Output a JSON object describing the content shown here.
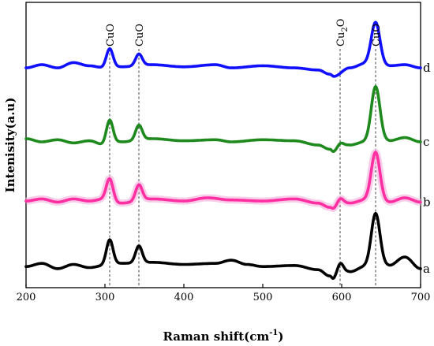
{
  "chart_data": {
    "type": "line",
    "xlabel": "Raman shift(cm",
    "xlabel_sup": "-1",
    "xlabel_close": ")",
    "ylabel": "Intenisity(a.u)",
    "xlim": [
      200,
      700
    ],
    "xticks": [
      "200",
      "300",
      "400",
      "500",
      "600",
      "700"
    ],
    "grid": false,
    "legend": "none",
    "annotations": [
      {
        "x": 306,
        "text": "CuO"
      },
      {
        "x": 343,
        "text": "CuO"
      },
      {
        "x": 598,
        "text": "Cu",
        "sub": "2",
        "tail": "O"
      },
      {
        "x": 643,
        "text": "CuO"
      }
    ],
    "series": [
      {
        "name": "a",
        "color": "#000000",
        "offset": 0,
        "baseline": [
          [
            200,
            0.0
          ],
          [
            220,
            0.3
          ],
          [
            240,
            -0.2
          ],
          [
            260,
            0.2
          ],
          [
            280,
            -0.1
          ],
          [
            300,
            0.1
          ],
          [
            320,
            0.3
          ],
          [
            360,
            0.4
          ],
          [
            400,
            0.2
          ],
          [
            440,
            0.3
          ],
          [
            460,
            0.6
          ],
          [
            480,
            0.2
          ],
          [
            500,
            0.0
          ],
          [
            540,
            0.1
          ],
          [
            570,
            -0.3
          ],
          [
            585,
            -0.9
          ],
          [
            590,
            -1.3
          ],
          [
            610,
            -0.5
          ],
          [
            630,
            0.0
          ],
          [
            660,
            0.1
          ],
          [
            680,
            0.9
          ],
          [
            700,
            -0.2
          ]
        ],
        "peaks": [
          [
            306,
            2.4
          ],
          [
            343,
            1.6
          ],
          [
            598,
            1.3
          ],
          [
            643,
            5.0
          ]
        ]
      },
      {
        "name": "b",
        "color": "#ff2fa2",
        "offset": 6.2,
        "baseline": [
          [
            200,
            0.0
          ],
          [
            220,
            0.2
          ],
          [
            240,
            -0.1
          ],
          [
            260,
            0.2
          ],
          [
            280,
            0.0
          ],
          [
            300,
            0.2
          ],
          [
            320,
            -0.2
          ],
          [
            360,
            0.2
          ],
          [
            400,
            0.0
          ],
          [
            430,
            0.3
          ],
          [
            460,
            0.1
          ],
          [
            500,
            0.0
          ],
          [
            540,
            0.2
          ],
          [
            570,
            -0.2
          ],
          [
            585,
            -0.6
          ],
          [
            590,
            -0.8
          ],
          [
            610,
            -0.2
          ],
          [
            630,
            0.1
          ],
          [
            660,
            -0.1
          ],
          [
            680,
            0.3
          ],
          [
            700,
            -0.1
          ]
        ],
        "peaks": [
          [
            306,
            2.0
          ],
          [
            343,
            1.5
          ],
          [
            598,
            0.8
          ],
          [
            643,
            4.6
          ]
        ]
      },
      {
        "name": "c",
        "color": "#1e8a1e",
        "offset": 11.8,
        "baseline": [
          [
            200,
            0.3
          ],
          [
            220,
            0.0
          ],
          [
            240,
            0.2
          ],
          [
            260,
            -0.1
          ],
          [
            280,
            0.1
          ],
          [
            300,
            -0.3
          ],
          [
            320,
            0.0
          ],
          [
            360,
            0.3
          ],
          [
            400,
            0.1
          ],
          [
            440,
            0.2
          ],
          [
            460,
            0.0
          ],
          [
            500,
            0.2
          ],
          [
            540,
            0.1
          ],
          [
            570,
            -0.3
          ],
          [
            585,
            -0.7
          ],
          [
            590,
            -1.0
          ],
          [
            610,
            -0.3
          ],
          [
            630,
            0.0
          ],
          [
            660,
            0.1
          ],
          [
            680,
            0.4
          ],
          [
            700,
            0.0
          ]
        ],
        "peaks": [
          [
            306,
            2.3
          ],
          [
            343,
            1.4
          ],
          [
            598,
            0.6
          ],
          [
            643,
            5.2
          ]
        ]
      },
      {
        "name": "d",
        "color": "#1010ff",
        "offset": 18.8,
        "baseline": [
          [
            200,
            0.0
          ],
          [
            220,
            0.3
          ],
          [
            240,
            0.0
          ],
          [
            260,
            0.5
          ],
          [
            280,
            0.2
          ],
          [
            300,
            0.0
          ],
          [
            320,
            0.1
          ],
          [
            360,
            0.3
          ],
          [
            400,
            0.1
          ],
          [
            440,
            0.3
          ],
          [
            460,
            0.0
          ],
          [
            500,
            0.2
          ],
          [
            540,
            0.0
          ],
          [
            570,
            -0.2
          ],
          [
            585,
            -0.6
          ],
          [
            590,
            -0.8
          ],
          [
            610,
            0.0
          ],
          [
            630,
            0.4
          ],
          [
            660,
            0.2
          ],
          [
            680,
            0.3
          ],
          [
            700,
            0.0
          ]
        ],
        "peaks": [
          [
            306,
            1.8
          ],
          [
            343,
            1.1
          ],
          [
            643,
            4.0
          ]
        ]
      }
    ]
  }
}
